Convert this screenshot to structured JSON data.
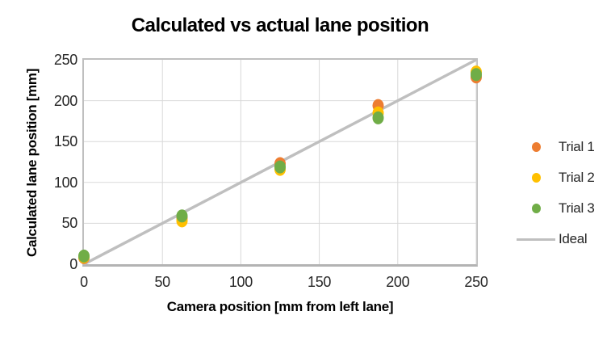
{
  "chart_data": {
    "type": "scatter",
    "title": "Calculated vs actual lane position",
    "xlabel": "Camera position [mm from left lane]",
    "ylabel": "Calculated lane position [mm]",
    "xlim": [
      0,
      250
    ],
    "ylim": [
      0,
      250
    ],
    "x_ticks": [
      0,
      50,
      100,
      150,
      200,
      250
    ],
    "y_ticks": [
      0,
      50,
      100,
      150,
      200,
      250
    ],
    "grid": true,
    "legend_position": "right",
    "x": [
      0,
      62.5,
      125,
      187.5,
      250
    ],
    "series": [
      {
        "name": "Trial 1",
        "color": "#ED7D31",
        "values": [
          8,
          57,
          123,
          194,
          229
        ]
      },
      {
        "name": "Trial 2",
        "color": "#FFC000",
        "values": [
          9,
          53,
          116,
          185,
          235
        ]
      },
      {
        "name": "Trial 3",
        "color": "#70AD47",
        "values": [
          10,
          59,
          119,
          179,
          232
        ]
      }
    ],
    "ideal_line": {
      "name": "Ideal",
      "color": "#BFBFBF",
      "from": [
        0,
        0
      ],
      "to": [
        250,
        250
      ]
    },
    "grid_color": "#D9D9D9",
    "border_color": "#BFBFBF",
    "text_color": "#262626",
    "marker_rx": 7,
    "marker_ry": 8
  }
}
